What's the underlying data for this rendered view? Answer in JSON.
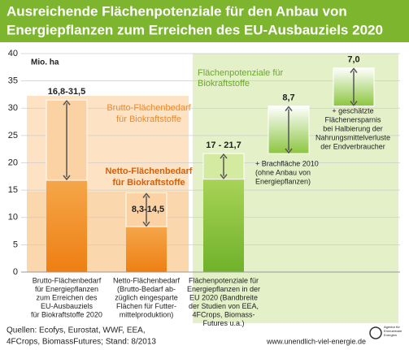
{
  "title": [
    "Ausreichende Flächenpotenziale für den Anbau von",
    "Energiepflanzen zum Erreichen des EU-Ausbauziels 2020"
  ],
  "chart_data": {
    "type": "bar",
    "unit": "Mio. ha",
    "ylim": [
      0,
      40
    ],
    "yticks": [
      0,
      5,
      10,
      15,
      20,
      25,
      30,
      35,
      40
    ],
    "bars": [
      {
        "category": [
          "Brutto-Flächenbedarf",
          "für Energiepflanzen",
          "zum Erreichen des",
          "EU-Ausbauziels",
          "für Biokraftstoffe 2020"
        ],
        "low": 16.8,
        "high": 31.5,
        "value_label": "16,8-31,5",
        "color": "#ef861c",
        "light": "#fbd2a4"
      },
      {
        "category": [
          "Netto-Flächenbedarf",
          "(Brutto-Bedarf  ab-",
          "züglich eingesparte",
          "Flächen für Futter-",
          "mittelproduktion)"
        ],
        "low": 8.3,
        "high": 14.5,
        "value_label": "8,3-14,5",
        "color": "#ef861c",
        "light": "#fbd2a4"
      },
      {
        "category": [
          "Flächenpotenziale für",
          "Energiepflanzen in der",
          "EU 2020 (Bandbreite",
          "der Studien von EEA,",
          "4FCrops, Biomass-",
          "Futures u.a.)"
        ],
        "low": 17,
        "high": 21.7,
        "value_label": "17 - 21,7",
        "color": "#7fbf2e",
        "light": "#d4eaa0"
      },
      {
        "value": 8.7,
        "value_label": "8,7",
        "color": "#8cc63f",
        "note": [
          "+ Brachfläche 2010",
          "(ohne Anbau von",
          "Energiepflanzen)"
        ]
      },
      {
        "value": 7.0,
        "value_label": "7,0",
        "color": "#8cc63f",
        "note": [
          "+ geschätzte",
          "Flächenersparnis",
          "bei Halbierung der",
          "Nahrungsmittelverluste",
          "der Endverbraucher"
        ]
      }
    ],
    "annotations": {
      "brutto": [
        "Brutto-Flächenbedarf",
        "für Biokraftstoffe"
      ],
      "netto": [
        "Netto-Flächenbedarf",
        "für Biokraftstoffe"
      ],
      "potenzial": [
        "Flächenpotenziale für",
        "Biokraftstoffe"
      ]
    }
  },
  "footer": {
    "sources": [
      "Quellen: Ecofys, Eurostat, WWF, EEA,",
      "4FCrops, BiomassFutures; Stand: 8/2013"
    ],
    "url": "www.unendlich-viel-energie.de",
    "logo": [
      "Agentur für",
      "Erneuerbare",
      "Energien"
    ]
  }
}
